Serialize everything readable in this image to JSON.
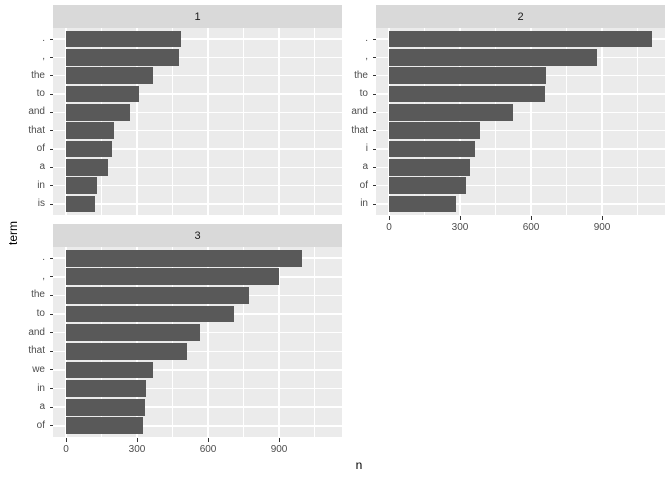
{
  "colors": {
    "bar": "#595959",
    "panel_bg": "#EBEBEB",
    "strip_bg": "#D9D9D9",
    "strip_text": "#1A1A1A",
    "grid": "#FFFFFF",
    "axis_text": "#4D4D4D",
    "tick_mark": "#333333",
    "title_text": "#000000",
    "background": "#FFFFFF"
  },
  "chart_data": {
    "type": "bar",
    "orientation": "horizontal",
    "xlabel": "n",
    "ylabel": "term",
    "xlim": [
      -55,
      1166
    ],
    "x_major_ticks": [
      0,
      300,
      600,
      900
    ],
    "x_major_labels": [
      "0",
      "300",
      "600",
      "900"
    ],
    "x_minor_ticks": [
      150,
      450,
      750,
      1050
    ],
    "grid": true,
    "legend": "none",
    "facets": [
      {
        "label": "1",
        "terms": [
          ".",
          ",",
          "the",
          "to",
          "and",
          "that",
          "of",
          "a",
          "in",
          "is"
        ],
        "values": [
          486,
          478,
          369,
          308,
          270,
          204,
          193,
          177,
          131,
          124
        ],
        "show_x_axis": false
      },
      {
        "label": "2",
        "terms": [
          ".",
          ",",
          "the",
          "to",
          "and",
          "that",
          "i",
          "a",
          "of",
          "in"
        ],
        "values": [
          1110,
          879,
          662,
          659,
          523,
          384,
          363,
          341,
          325,
          283
        ],
        "show_x_axis": true
      },
      {
        "label": "3",
        "terms": [
          ".",
          ",",
          "the",
          "to",
          "and",
          "that",
          "we",
          "in",
          "a",
          "of"
        ],
        "values": [
          998,
          901,
          773,
          708,
          565,
          510,
          367,
          338,
          334,
          324
        ],
        "show_x_axis": true
      }
    ]
  }
}
